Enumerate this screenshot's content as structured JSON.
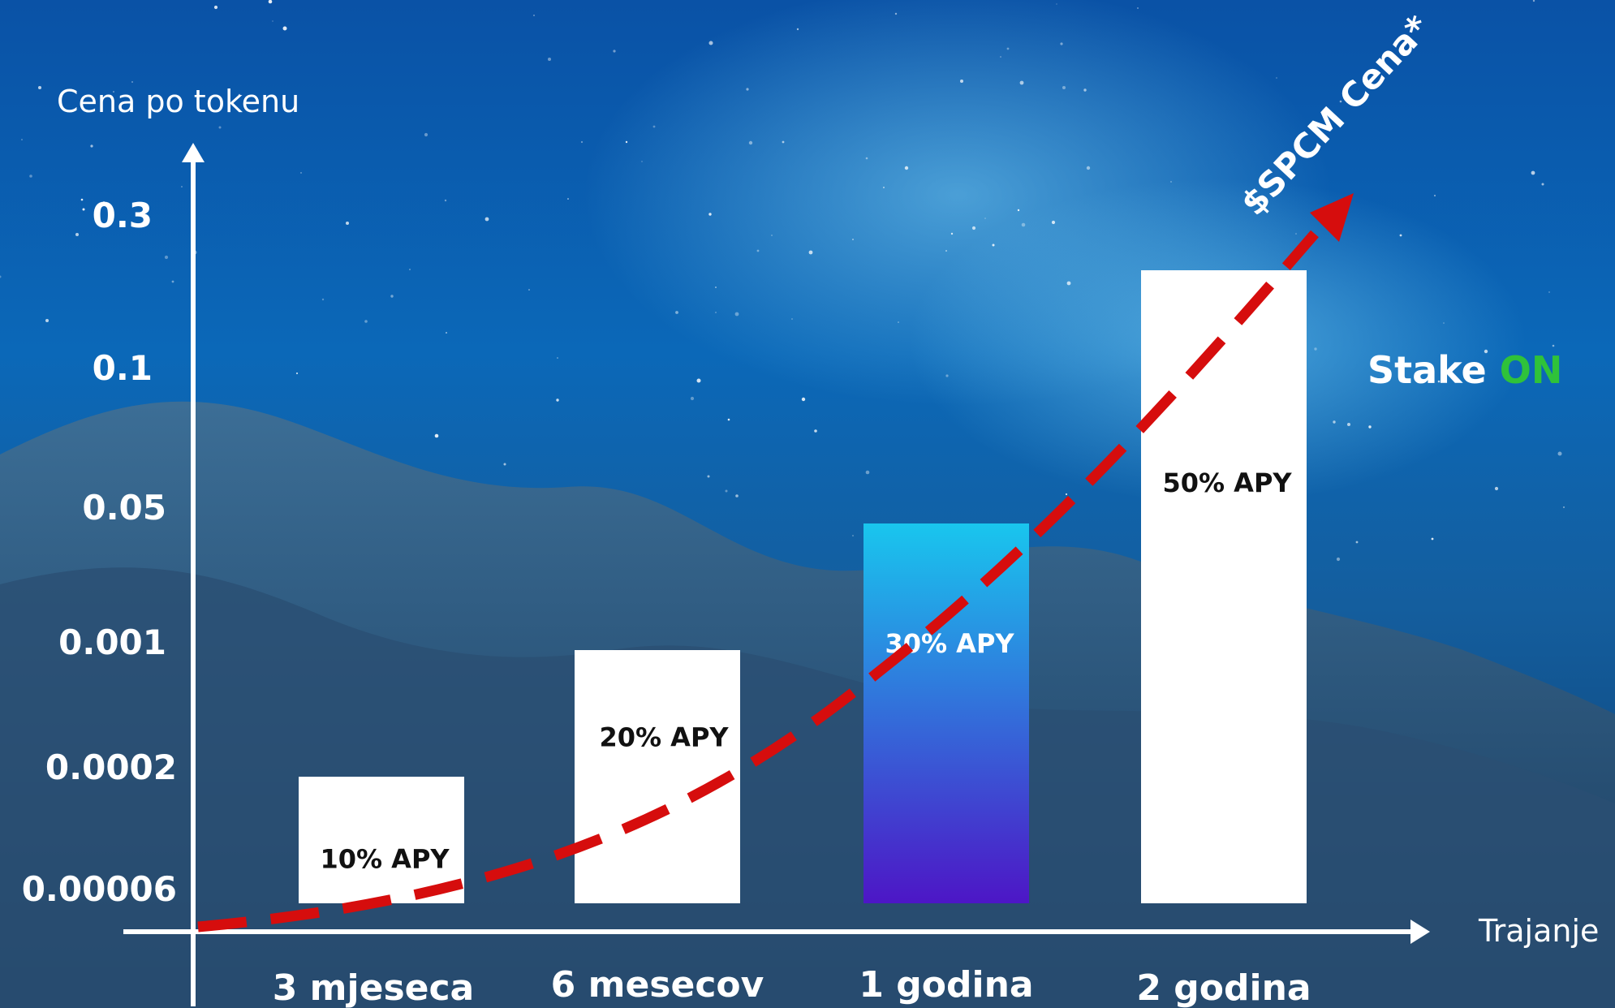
{
  "chart_data": {
    "type": "bar",
    "ylabel": "Cena po tokenu",
    "xlabel": "Trajanje",
    "y_ticks": [
      "0.3",
      "0.1",
      "0.05",
      "0.001",
      "0.0002",
      "0.00006"
    ],
    "y_scale": "log",
    "categories": [
      "3 mjeseca",
      "6 mesecov",
      "1 godina",
      "2 godina"
    ],
    "values": [
      10,
      20,
      30,
      50
    ],
    "unit": "% APY",
    "bar_labels": [
      "10% APY",
      "20% APY",
      "30% APY",
      "50% APY"
    ],
    "highlighted_category": "1 godina",
    "trend_label": "$SPCM Cena*",
    "grid": false
  },
  "badge": {
    "prefix": "Stake",
    "suffix": "ON"
  },
  "colors": {
    "bar": "#ffffff",
    "bar_highlight_top": "#19c6ee",
    "bar_highlight_bottom": "#4d16c6",
    "trend": "#d60d0d",
    "badge_accent": "#2fc23a",
    "axis": "#ffffff"
  }
}
